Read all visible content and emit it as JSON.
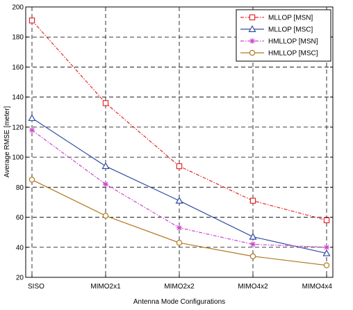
{
  "chart_data": {
    "type": "line",
    "title": "",
    "xlabel": "Antenna Mode Configurations",
    "ylabel": "Average RMSE [meter]",
    "categories": [
      "SISO",
      "MIMO2x1",
      "MIMO2x2",
      "MIMO4x2",
      "MIMO4x4"
    ],
    "ylim": [
      20,
      200
    ],
    "yticks": [
      "20",
      "40",
      "60",
      "80",
      "100",
      "120",
      "140",
      "160",
      "180",
      "200"
    ],
    "grid": true,
    "legend_position": "top-right",
    "series": [
      {
        "name": "MLLOP [MSN]",
        "values": [
          191,
          136,
          94,
          71,
          58
        ],
        "color": "#e8262c",
        "marker": "square",
        "dash": "dash-dot"
      },
      {
        "name": "MLLOP [MSC]",
        "values": [
          126,
          94,
          71,
          47,
          36
        ],
        "color": "#2f4da0",
        "marker": "triangle",
        "dash": "solid"
      },
      {
        "name": "HMLLOP [MSN]",
        "values": [
          118,
          82,
          53,
          42,
          40
        ],
        "color": "#cc44cc",
        "marker": "star",
        "dash": "dash-dot"
      },
      {
        "name": "HMLLOP [MSC]",
        "values": [
          85,
          61,
          43,
          34,
          28
        ],
        "color": "#b07820",
        "marker": "circle",
        "dash": "solid"
      }
    ]
  }
}
